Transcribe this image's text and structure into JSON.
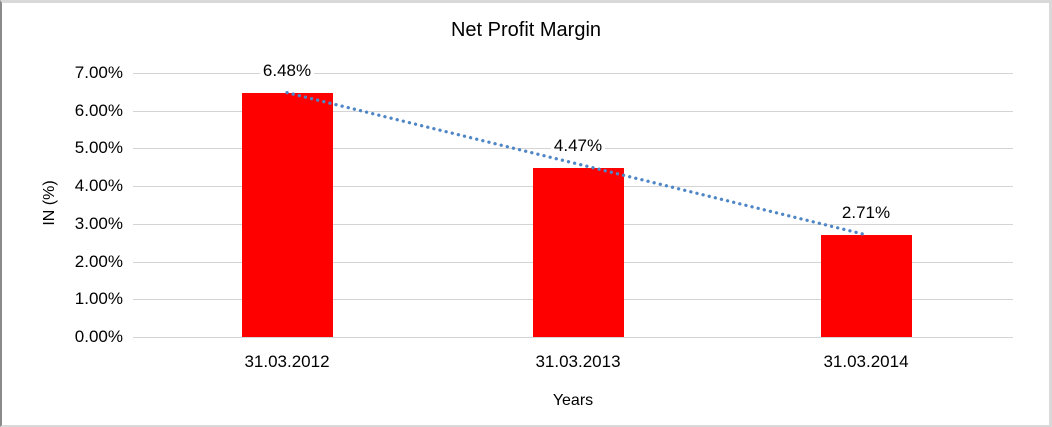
{
  "window": {
    "background": "#ffffff",
    "frame_color": "#d9d9d9",
    "frame_left_color": "#8a8a8a"
  },
  "chart_data": {
    "type": "bar",
    "title": "Net Profit Margin",
    "categories": [
      "31.03.2012",
      "31.03.2013",
      "31.03.2014"
    ],
    "values": [
      6.48,
      4.47,
      2.71
    ],
    "data_labels": [
      "6.48%",
      "4.47%",
      "2.71%"
    ],
    "xlabel": "Years",
    "ylabel": "IN (%)",
    "ylim": [
      0,
      7
    ],
    "ytick_step": 1,
    "ytick_labels": [
      "0.00%",
      "1.00%",
      "2.00%",
      "3.00%",
      "4.00%",
      "5.00%",
      "6.00%",
      "7.00%"
    ],
    "grid": true,
    "legend": "none",
    "bar_color": "#ff0000",
    "gridline_color": "#d4d4d4",
    "text_color": "#000000",
    "trendline": {
      "type": "linear",
      "style": "dotted",
      "color": "#4f86c6",
      "from_value": 6.48,
      "to_value": 2.71
    }
  }
}
